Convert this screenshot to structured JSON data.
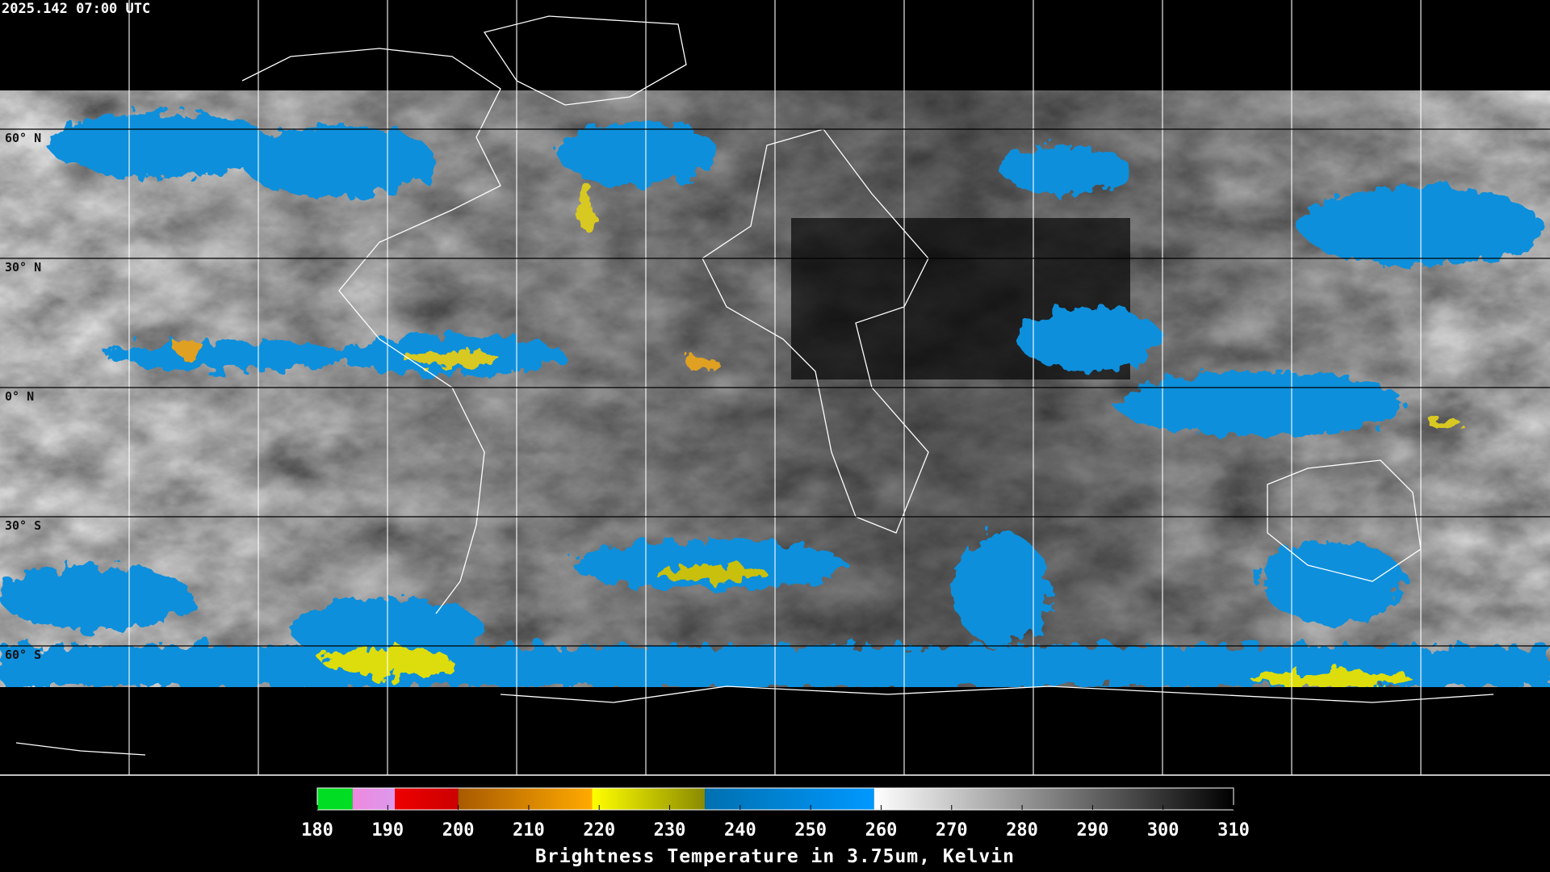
{
  "header": {
    "timestamp": "2025.142 07:00 UTC"
  },
  "map": {
    "lat_ticks": [
      {
        "value": 60,
        "label": "60° N"
      },
      {
        "value": 30,
        "label": "30° N"
      },
      {
        "value": 0,
        "label": "0° N"
      },
      {
        "value": -30,
        "label": "30° S"
      },
      {
        "value": -60,
        "label": "60° S"
      }
    ]
  },
  "colorbar": {
    "title": "Brightness Temperature in 3.75um, Kelvin",
    "range": [
      180,
      310
    ],
    "ticks": [
      180,
      190,
      200,
      210,
      220,
      230,
      240,
      250,
      260,
      270,
      280,
      290,
      300,
      310
    ],
    "segments": [
      {
        "from": 180,
        "to": 185,
        "colors": [
          "#00dd22",
          "#00dd22"
        ]
      },
      {
        "from": 185,
        "to": 191,
        "colors": [
          "#ee88dd",
          "#dd99ee"
        ]
      },
      {
        "from": 191,
        "to": 200,
        "colors": [
          "#ee0000",
          "#cc0000"
        ]
      },
      {
        "from": 200,
        "to": 219,
        "colors": [
          "#a85a00",
          "#ffaa00"
        ]
      },
      {
        "from": 219,
        "to": 235,
        "colors": [
          "#ffff00",
          "#8a8a00"
        ]
      },
      {
        "from": 235,
        "to": 259,
        "colors": [
          "#0070b0",
          "#0099ff"
        ]
      },
      {
        "from": 259,
        "to": 310,
        "colors": [
          "#ffffff",
          "#000000"
        ]
      }
    ]
  }
}
